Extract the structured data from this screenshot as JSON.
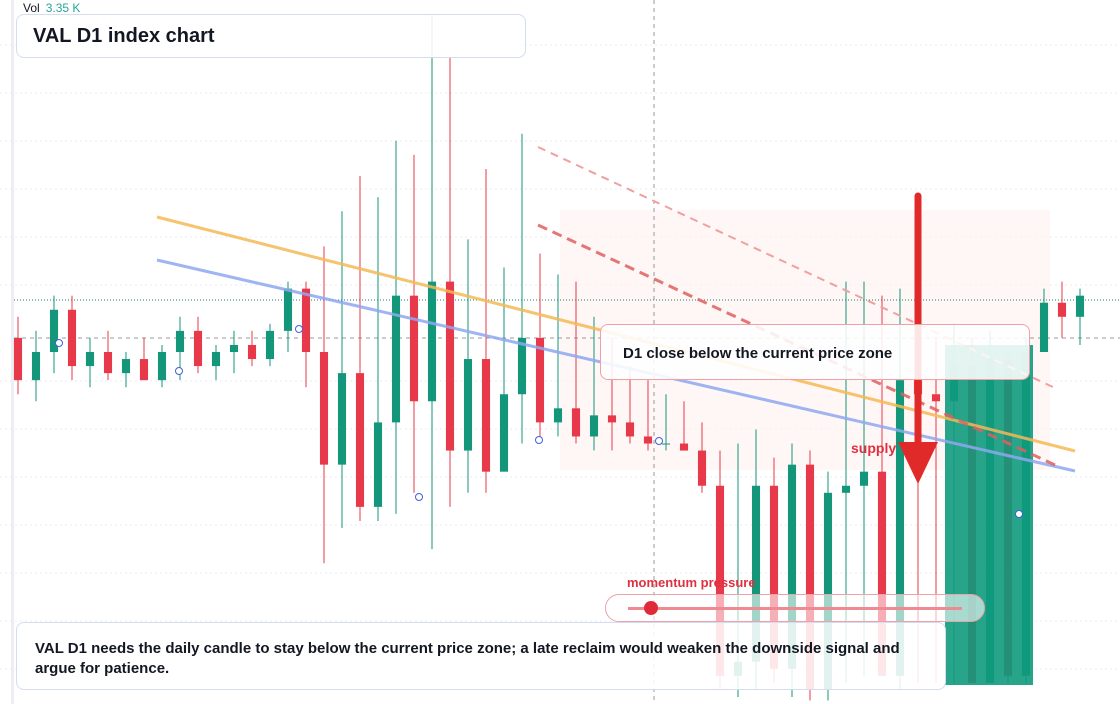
{
  "chart_data": {
    "type": "candlestick",
    "title": "VAL D1 index chart",
    "volume_label": "Vol",
    "volume_value": "3.35 K",
    "annotations": [
      "D1 close below the current price zone",
      "supply",
      "momentum pressure",
      "VAL D1 needs the daily candle to stay below the current price zone; a late reclaim would weaken the downside signal and argue for patience."
    ],
    "up_color": "#14967a",
    "down_color": "#e8394a",
    "ylim": [
      0,
      100
    ],
    "open": [
      52,
      46,
      50,
      56,
      48,
      50,
      47,
      49,
      46,
      50,
      53,
      48,
      50,
      51,
      49,
      53,
      59,
      50,
      34,
      47,
      28,
      40,
      58,
      43,
      60,
      36,
      49,
      33,
      44,
      52,
      40,
      42,
      38,
      41,
      40,
      38,
      37,
      37,
      36,
      31,
      4,
      6,
      31,
      5,
      34,
      2,
      30,
      31,
      33,
      4,
      46,
      44,
      43,
      48,
      3,
      49,
      4,
      50,
      57,
      55
    ],
    "high": [
      55,
      53,
      58,
      58,
      52,
      53,
      50,
      52,
      51,
      55,
      55,
      51,
      53,
      53,
      54,
      60,
      60,
      65,
      70,
      75,
      72,
      80,
      78,
      98,
      92,
      66,
      76,
      62,
      81,
      64,
      61,
      60,
      55,
      52,
      48,
      46,
      44,
      43,
      40,
      36,
      37,
      39,
      35,
      37,
      36,
      33,
      60,
      60,
      58,
      59,
      53,
      52,
      54,
      52,
      53,
      50,
      52,
      59,
      60,
      59
    ],
    "low": [
      44,
      43,
      47,
      46,
      45,
      46,
      45,
      46,
      45,
      46,
      47,
      46,
      47,
      48,
      48,
      50,
      45,
      20,
      25,
      26,
      26,
      27,
      30,
      22,
      28,
      30,
      30,
      33,
      37,
      37,
      38,
      37,
      36,
      36,
      37,
      36,
      36,
      36,
      30,
      2,
      1,
      2,
      3,
      1,
      0.5,
      0.5,
      3,
      4,
      4,
      2,
      3,
      3,
      3,
      3,
      3,
      3,
      3,
      50,
      52,
      51
    ],
    "close": [
      46,
      50,
      56,
      48,
      50,
      47,
      49,
      46,
      50,
      53,
      48,
      50,
      51,
      49,
      53,
      59,
      50,
      34,
      47,
      28,
      40,
      58,
      43,
      60,
      36,
      49,
      33,
      44,
      52,
      40,
      42,
      38,
      41,
      40,
      38,
      37,
      37,
      36,
      31,
      4,
      6,
      31,
      5,
      34,
      2,
      30,
      31,
      33,
      4,
      46,
      44,
      43,
      48,
      3,
      49,
      4,
      50,
      57,
      55,
      58
    ]
  }
}
